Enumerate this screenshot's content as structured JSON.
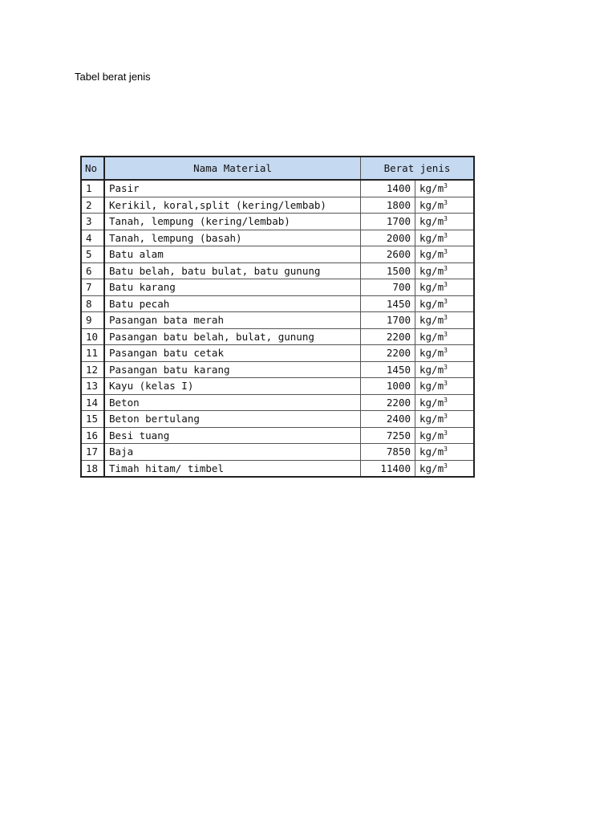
{
  "document": {
    "title": "Tabel berat jenis"
  },
  "table": {
    "headers": {
      "no": "No",
      "name": "Nama Material",
      "value": "Berat jenis"
    },
    "header_color": "#c5d9f1",
    "unit": "kg/m",
    "unit_exponent": "3",
    "rows": [
      {
        "no": "1",
        "name": "Pasir",
        "value": "1400"
      },
      {
        "no": "2",
        "name": "Kerikil, koral,split (kering/lembab)",
        "value": "1800"
      },
      {
        "no": "3",
        "name": "Tanah, lempung (kering/lembab)",
        "value": "1700"
      },
      {
        "no": "4",
        "name": "Tanah, lempung (basah)",
        "value": "2000"
      },
      {
        "no": "5",
        "name": "Batu alam",
        "value": "2600"
      },
      {
        "no": "6",
        "name": "Batu belah, batu bulat, batu gunung",
        "value": "1500"
      },
      {
        "no": "7",
        "name": "Batu karang",
        "value": "700"
      },
      {
        "no": "8",
        "name": "Batu pecah",
        "value": "1450"
      },
      {
        "no": "9",
        "name": "Pasangan bata merah",
        "value": "1700"
      },
      {
        "no": "10",
        "name": "Pasangan batu belah, bulat, gunung",
        "value": "2200"
      },
      {
        "no": "11",
        "name": "Pasangan batu cetak",
        "value": "2200"
      },
      {
        "no": "12",
        "name": "Pasangan batu karang",
        "value": "1450"
      },
      {
        "no": "13",
        "name": "Kayu (kelas I)",
        "value": "1000"
      },
      {
        "no": "14",
        "name": "Beton",
        "value": "2200"
      },
      {
        "no": "15",
        "name": "Beton bertulang",
        "value": "2400"
      },
      {
        "no": "16",
        "name": "Besi tuang",
        "value": "7250"
      },
      {
        "no": "17",
        "name": "Baja",
        "value": "7850"
      },
      {
        "no": "18",
        "name": "Timah hitam/ timbel",
        "value": "11400"
      }
    ]
  }
}
